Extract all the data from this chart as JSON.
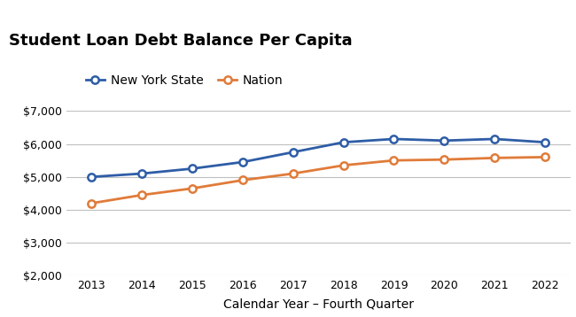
{
  "title": "Student Loan Debt Balance Per Capita",
  "xlabel": "Calendar Year – Fourth Quarter",
  "years": [
    2013,
    2014,
    2015,
    2016,
    2017,
    2018,
    2019,
    2020,
    2021,
    2022
  ],
  "ny_values": [
    5000,
    5100,
    5250,
    5450,
    5750,
    6050,
    6150,
    6100,
    6150,
    6050
  ],
  "nation_values": [
    4200,
    4450,
    4650,
    4900,
    5100,
    5350,
    5500,
    5525,
    5575,
    5600
  ],
  "ny_color": "#2E5DA6",
  "nation_color": "#E07B39",
  "ylim": [
    2000,
    7000
  ],
  "yticks": [
    2000,
    3000,
    4000,
    5000,
    6000,
    7000
  ],
  "title_bg_color": "#D9D9D9",
  "plot_bg_color": "#FFFFFF",
  "fig_bg_color": "#FFFFFF",
  "grid_color": "#C0C0C0",
  "title_fontsize": 13,
  "axis_label_fontsize": 10,
  "tick_fontsize": 9,
  "legend_fontsize": 10,
  "line_width": 2.0,
  "marker_size": 6,
  "marker_style": "o",
  "marker_facecolor": "white",
  "marker_edge_width": 1.8,
  "ny_label": "New York State",
  "nation_label": "Nation"
}
